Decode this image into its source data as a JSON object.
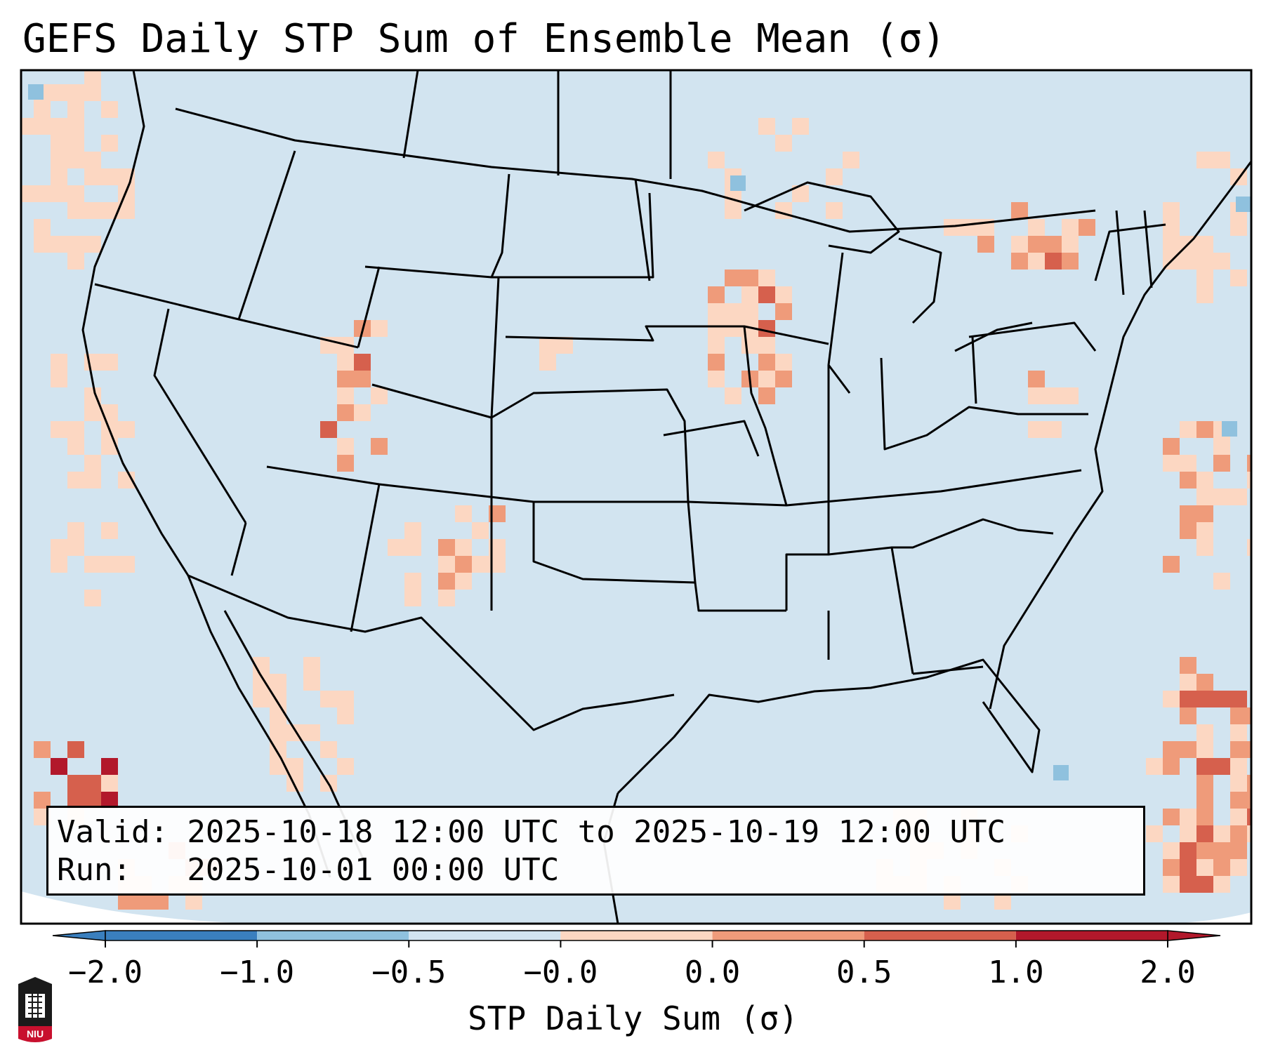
{
  "title": "GEFS Daily STP Sum of Ensemble Mean (σ)",
  "valid_line": "Valid: 2025-10-18 12:00 UTC to 2025-10-19 12:00 UTC",
  "run_line": "Run:   2025-10-01 00:00 UTC",
  "colorbar": {
    "label": "STP Daily Sum (σ)",
    "ticks": [
      "−2.0",
      "−1.0",
      "−0.5",
      "−0.0",
      "0.0",
      "0.5",
      "1.0",
      "2.0"
    ],
    "colors": [
      "#3a7fbe",
      "#8fc1de",
      "#d2e4f0",
      "#fcd7c2",
      "#ef9b7a",
      "#d6604d",
      "#b2182b"
    ]
  },
  "logo_text": "NIU",
  "map": {
    "background": "#d2e4f0",
    "coast_color": "#000000"
  }
}
